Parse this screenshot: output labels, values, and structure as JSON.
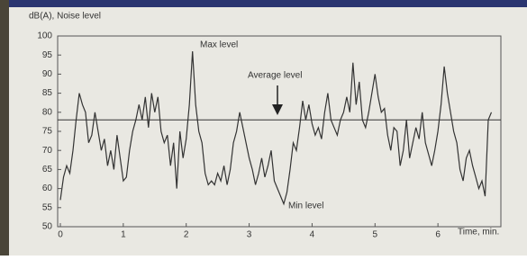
{
  "chart_data": {
    "type": "line",
    "y_label": "dB(A), Noise level",
    "x_label": "Time, min.",
    "annotations": [
      "Max level",
      "Average level",
      "Min level"
    ],
    "average_level": 78,
    "color": "#333333",
    "xlim": [
      0,
      7
    ],
    "xticks": [
      0,
      1,
      2,
      3,
      4,
      5,
      6
    ],
    "ylim": [
      50,
      100
    ],
    "yticks": [
      50,
      55,
      60,
      65,
      70,
      75,
      80,
      85,
      90,
      95,
      100
    ],
    "x": [
      0,
      0.05,
      0.1,
      0.15,
      0.2,
      0.25,
      0.3,
      0.35,
      0.4,
      0.45,
      0.5,
      0.55,
      0.6,
      0.65,
      0.7,
      0.75,
      0.8,
      0.85,
      0.9,
      0.95,
      1,
      1.05,
      1.1,
      1.15,
      1.2,
      1.25,
      1.3,
      1.35,
      1.4,
      1.45,
      1.5,
      1.55,
      1.6,
      1.65,
      1.7,
      1.75,
      1.8,
      1.85,
      1.9,
      1.95,
      2,
      2.05,
      2.1,
      2.15,
      2.2,
      2.25,
      2.3,
      2.35,
      2.4,
      2.45,
      2.5,
      2.55,
      2.6,
      2.65,
      2.7,
      2.75,
      2.8,
      2.85,
      2.9,
      2.95,
      3,
      3.05,
      3.1,
      3.15,
      3.2,
      3.25,
      3.3,
      3.35,
      3.4,
      3.45,
      3.5,
      3.55,
      3.6,
      3.65,
      3.7,
      3.75,
      3.8,
      3.85,
      3.9,
      3.95,
      4,
      4.05,
      4.1,
      4.15,
      4.2,
      4.25,
      4.3,
      4.35,
      4.4,
      4.45,
      4.5,
      4.55,
      4.6,
      4.65,
      4.7,
      4.75,
      4.8,
      4.85,
      4.9,
      4.95,
      5,
      5.05,
      5.1,
      5.15,
      5.2,
      5.25,
      5.3,
      5.35,
      5.4,
      5.45,
      5.5,
      5.55,
      5.6,
      5.65,
      5.7,
      5.75,
      5.8,
      5.85,
      5.9,
      5.95,
      6,
      6.05,
      6.1,
      6.15,
      6.2,
      6.25,
      6.3,
      6.35,
      6.4,
      6.45,
      6.5,
      6.55,
      6.6,
      6.65,
      6.7,
      6.75,
      6.8,
      6.85
    ],
    "values": [
      57,
      63,
      66,
      64,
      70,
      78,
      85,
      82,
      80,
      72,
      74,
      80,
      75,
      70,
      73,
      66,
      70,
      65,
      74,
      68,
      62,
      63,
      70,
      75,
      78,
      82,
      78,
      84,
      76,
      85,
      80,
      84,
      75,
      72,
      74,
      66,
      72,
      60,
      75,
      68,
      73,
      82,
      96,
      82,
      75,
      72,
      64,
      61,
      62,
      61,
      64,
      62,
      66,
      61,
      65,
      72,
      75,
      80,
      76,
      72,
      68,
      65,
      61,
      64,
      68,
      63,
      66,
      70,
      62,
      60,
      58,
      56,
      59,
      65,
      72,
      70,
      76,
      83,
      78,
      82,
      77,
      74,
      76,
      73,
      80,
      85,
      78,
      76,
      74,
      78,
      80,
      84,
      80,
      93,
      82,
      88,
      78,
      76,
      80,
      85,
      90,
      84,
      80,
      81,
      74,
      70,
      76,
      75,
      66,
      70,
      78,
      68,
      72,
      76,
      73,
      80,
      72,
      69,
      66,
      70,
      75,
      82,
      92,
      85,
      80,
      75,
      72,
      65,
      62,
      68,
      70,
      66,
      63,
      60,
      62,
      58,
      78,
      80
    ]
  }
}
